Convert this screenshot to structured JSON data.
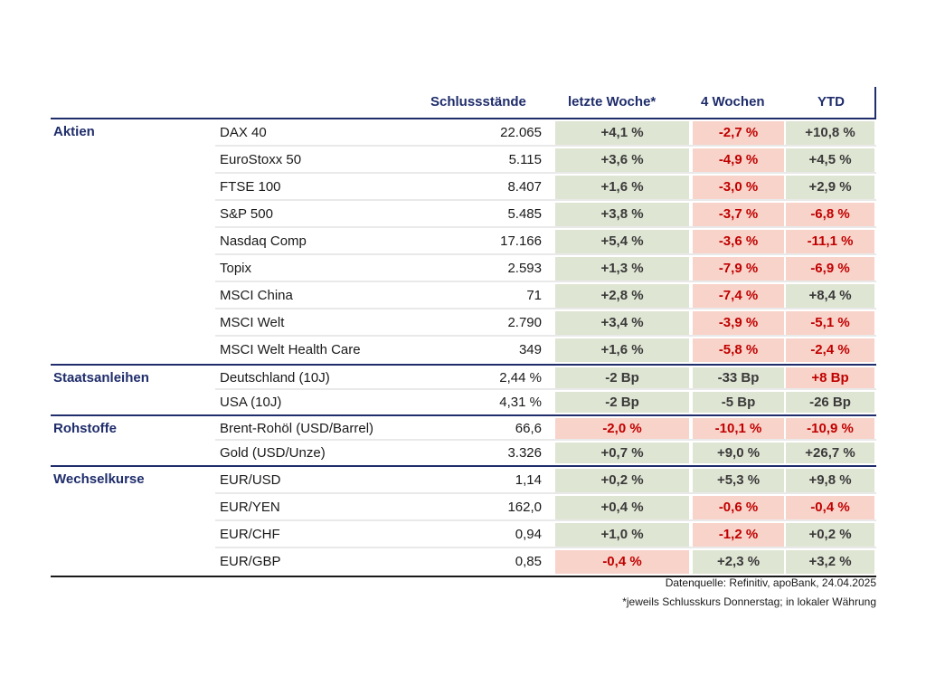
{
  "header": {
    "col_value": "Schlussstände",
    "col_week": "letzte Woche*",
    "col_4w": "4 Wochen",
    "col_ytd": "YTD"
  },
  "groups": [
    {
      "title": "Aktien",
      "rows": [
        {
          "name": "DAX 40",
          "value": "22.065",
          "w1": "+4,1 %",
          "w4": "-2,7 %",
          "ytd": "+10,8 %"
        },
        {
          "name": "EuroStoxx 50",
          "value": "5.115",
          "w1": "+3,6 %",
          "w4": "-4,9 %",
          "ytd": "+4,5 %"
        },
        {
          "name": "FTSE 100",
          "value": "8.407",
          "w1": "+1,6 %",
          "w4": "-3,0 %",
          "ytd": "+2,9 %"
        },
        {
          "name": "S&P 500",
          "value": "5.485",
          "w1": "+3,8 %",
          "w4": "-3,7 %",
          "ytd": "-6,8 %"
        },
        {
          "name": "Nasdaq Comp",
          "value": "17.166",
          "w1": "+5,4 %",
          "w4": "-3,6 %",
          "ytd": "-11,1 %"
        },
        {
          "name": "Topix",
          "value": "2.593",
          "w1": "+1,3 %",
          "w4": "-7,9 %",
          "ytd": "-6,9 %"
        },
        {
          "name": "MSCI China",
          "value": "71",
          "w1": "+2,8 %",
          "w4": "-7,4 %",
          "ytd": "+8,4 %"
        },
        {
          "name": "MSCI Welt",
          "value": "2.790",
          "w1": "+3,4 %",
          "w4": "-3,9 %",
          "ytd": "-5,1 %"
        },
        {
          "name": "MSCI Welt Health Care",
          "value": "349",
          "w1": "+1,6 %",
          "w4": "-5,8 %",
          "ytd": "-2,4 %"
        }
      ]
    },
    {
      "title": "Staatsanleihen",
      "rows": [
        {
          "name": "Deutschland (10J)",
          "value": "2,44 %",
          "w1": "-2 Bp",
          "w4": "-33 Bp",
          "ytd": "+8 Bp"
        },
        {
          "name": "USA (10J)",
          "value": "4,31 %",
          "w1": "-2 Bp",
          "w4": "-5 Bp",
          "ytd": "-26 Bp"
        }
      ]
    },
    {
      "title": "Rohstoffe",
      "rows": [
        {
          "name": "Brent-Rohöl (USD/Barrel)",
          "value": "66,6",
          "w1": "-2,0 %",
          "w4": "-10,1 %",
          "ytd": "-10,9 %"
        },
        {
          "name": "Gold (USD/Unze)",
          "value": "3.326",
          "w1": "+0,7 %",
          "w4": "+9,0 %",
          "ytd": "+26,7 %"
        }
      ]
    },
    {
      "title": "Wechselkurse",
      "rows": [
        {
          "name": "EUR/USD",
          "value": "1,14",
          "w1": "+0,2 %",
          "w4": "+5,3 %",
          "ytd": "+9,8 %"
        },
        {
          "name": "EUR/YEN",
          "value": "162,0",
          "w1": "+0,4 %",
          "w4": "-0,6 %",
          "ytd": "-0,4 %"
        },
        {
          "name": "EUR/CHF",
          "value": "0,94",
          "w1": "+1,0 %",
          "w4": "-1,2 %",
          "ytd": "+0,2 %"
        },
        {
          "name": "EUR/GBP",
          "value": "0,85",
          "w1": "-0,4 %",
          "w4": "+2,3 %",
          "ytd": "+3,2 %"
        }
      ]
    }
  ],
  "footer": {
    "source": "Datenquelle: Refinitiv, apoBank, 24.04.2025",
    "note": "*jeweils Schlusskurs Donnerstag; in lokaler Währung"
  },
  "colors": {
    "positive_bg": "#dfe5d3",
    "negative_bg": "#f8d3c9",
    "negative_text": "#c00000",
    "header_blue": "#1f2d6b"
  }
}
